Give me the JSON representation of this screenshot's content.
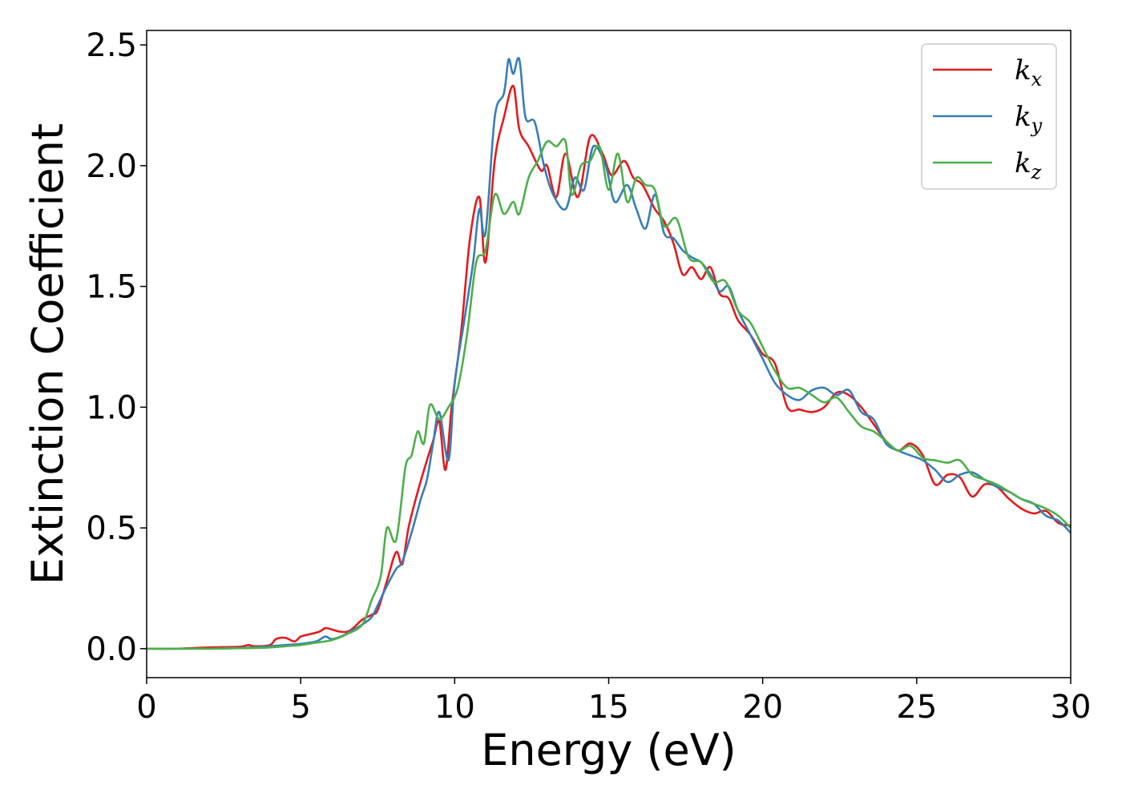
{
  "chart_data": {
    "type": "line",
    "xlabel": "Energy (eV)",
    "ylabel": "Extinction Coefficient",
    "xlim": [
      0,
      30
    ],
    "ylim": [
      -0.12,
      2.56
    ],
    "xticks": [
      "0",
      "5",
      "10",
      "15",
      "20",
      "25",
      "30"
    ],
    "yticks": [
      "0.0",
      "0.5",
      "1.0",
      "1.5",
      "2.0",
      "2.5"
    ],
    "grid": false,
    "legend_position": "top-right",
    "series": [
      {
        "name": "k_x",
        "label_main": "k",
        "label_sub": "x",
        "color": "#e41a1c",
        "x": [
          0,
          1,
          2,
          3,
          3.3,
          3.5,
          4,
          4.2,
          4.5,
          4.8,
          5,
          5.3,
          5.6,
          5.8,
          6,
          6.3,
          6.6,
          7,
          7.3,
          7.5,
          7.8,
          8.1,
          8.3,
          8.5,
          8.8,
          9.1,
          9.3,
          9.5,
          9.7,
          9.9,
          10.2,
          10.5,
          10.8,
          11,
          11.3,
          11.6,
          11.9,
          12.1,
          12.4,
          12.8,
          13,
          13.3,
          13.6,
          14,
          14.4,
          14.8,
          15.1,
          15.5,
          15.8,
          16.1,
          16.5,
          16.8,
          17.1,
          17.4,
          17.7,
          18,
          18.3,
          18.6,
          18.9,
          19.2,
          19.6,
          20,
          20.4,
          20.8,
          21.2,
          21.6,
          22,
          22.4,
          22.8,
          23.2,
          23.6,
          24,
          24.4,
          24.8,
          25.2,
          25.6,
          26,
          26.4,
          26.8,
          27.2,
          27.6,
          28,
          28.4,
          28.8,
          29.2,
          29.6,
          30
        ],
        "y": [
          0,
          0,
          0.005,
          0.008,
          0.015,
          0.01,
          0.015,
          0.04,
          0.045,
          0.03,
          0.05,
          0.06,
          0.07,
          0.085,
          0.08,
          0.07,
          0.075,
          0.12,
          0.14,
          0.16,
          0.28,
          0.4,
          0.35,
          0.5,
          0.65,
          0.78,
          0.86,
          0.94,
          0.74,
          1.0,
          1.3,
          1.7,
          1.87,
          1.6,
          2.02,
          2.2,
          2.33,
          2.15,
          2.08,
          1.98,
          2.0,
          1.87,
          2.05,
          1.87,
          2.12,
          2.05,
          1.96,
          2.02,
          1.95,
          1.92,
          1.82,
          1.77,
          1.68,
          1.55,
          1.58,
          1.53,
          1.58,
          1.47,
          1.45,
          1.36,
          1.3,
          1.22,
          1.18,
          1.0,
          0.99,
          0.98,
          1.0,
          1.06,
          1.05,
          1.0,
          0.93,
          0.86,
          0.82,
          0.85,
          0.8,
          0.68,
          0.72,
          0.71,
          0.63,
          0.68,
          0.67,
          0.62,
          0.58,
          0.56,
          0.57,
          0.52,
          0.51
        ]
      },
      {
        "name": "k_y",
        "label_main": "k",
        "label_sub": "y",
        "color": "#377eb8",
        "x": [
          0,
          1,
          2,
          3,
          3.5,
          4,
          4.5,
          5,
          5.5,
          5.8,
          6,
          6.3,
          6.6,
          7,
          7.3,
          7.5,
          7.8,
          8.1,
          8.3,
          8.6,
          8.9,
          9.1,
          9.3,
          9.5,
          9.8,
          10,
          10.3,
          10.6,
          10.8,
          11,
          11.3,
          11.6,
          11.75,
          11.9,
          12.1,
          12.3,
          12.6,
          12.9,
          13.2,
          13.6,
          13.9,
          14.2,
          14.5,
          14.9,
          15.2,
          15.6,
          15.9,
          16.2,
          16.5,
          16.8,
          17.1,
          17.4,
          17.7,
          18,
          18.3,
          18.6,
          18.9,
          19.2,
          19.6,
          20,
          20.4,
          20.8,
          21.2,
          21.6,
          22,
          22.4,
          22.8,
          23.2,
          23.6,
          24,
          24.4,
          24.8,
          25.2,
          25.6,
          26,
          26.4,
          26.8,
          27.2,
          27.6,
          28,
          28.4,
          28.8,
          29.2,
          29.6,
          30
        ],
        "y": [
          0,
          0,
          0,
          0.003,
          0.005,
          0.01,
          0.015,
          0.02,
          0.03,
          0.05,
          0.04,
          0.05,
          0.07,
          0.1,
          0.13,
          0.18,
          0.26,
          0.33,
          0.36,
          0.48,
          0.62,
          0.7,
          0.85,
          0.98,
          0.78,
          1.1,
          1.35,
          1.6,
          1.82,
          1.72,
          2.2,
          2.3,
          2.44,
          2.38,
          2.44,
          2.2,
          2.18,
          2.0,
          1.88,
          1.82,
          1.95,
          1.9,
          2.08,
          2.0,
          1.85,
          1.92,
          1.82,
          1.74,
          1.88,
          1.72,
          1.7,
          1.65,
          1.62,
          1.6,
          1.55,
          1.48,
          1.5,
          1.4,
          1.3,
          1.2,
          1.1,
          1.05,
          1.03,
          1.07,
          1.08,
          1.05,
          1.07,
          0.98,
          0.95,
          0.85,
          0.82,
          0.8,
          0.78,
          0.74,
          0.69,
          0.72,
          0.73,
          0.7,
          0.67,
          0.65,
          0.62,
          0.6,
          0.55,
          0.53,
          0.48
        ]
      },
      {
        "name": "k_z",
        "label_main": "k",
        "label_sub": "z",
        "color": "#4daf4a",
        "x": [
          0,
          1,
          2,
          3,
          3.5,
          4,
          4.5,
          5,
          5.5,
          6,
          6.5,
          7,
          7.3,
          7.6,
          7.8,
          8.1,
          8.4,
          8.6,
          8.8,
          9,
          9.2,
          9.5,
          9.8,
          10.1,
          10.4,
          10.7,
          11,
          11.3,
          11.6,
          11.9,
          12.1,
          12.4,
          12.7,
          13,
          13.3,
          13.6,
          13.8,
          14.1,
          14.4,
          14.7,
          15,
          15.3,
          15.6,
          15.9,
          16.2,
          16.5,
          16.8,
          17.2,
          17.6,
          18,
          18.4,
          18.8,
          19.2,
          19.6,
          20,
          20.4,
          20.8,
          21.2,
          21.6,
          22,
          22.4,
          22.8,
          23.2,
          23.6,
          24,
          24.4,
          24.8,
          25.2,
          25.6,
          26,
          26.4,
          26.8,
          27.2,
          27.6,
          28,
          28.4,
          28.8,
          29.2,
          29.6,
          30
        ],
        "y": [
          0,
          0,
          0,
          0.002,
          0.003,
          0.005,
          0.01,
          0.015,
          0.025,
          0.035,
          0.06,
          0.1,
          0.2,
          0.3,
          0.5,
          0.45,
          0.75,
          0.8,
          0.9,
          0.85,
          1.01,
          0.95,
          1.0,
          1.08,
          1.3,
          1.6,
          1.65,
          1.88,
          1.8,
          1.85,
          1.8,
          1.95,
          2.02,
          2.1,
          2.08,
          2.1,
          1.88,
          2.0,
          2.02,
          2.08,
          1.9,
          2.05,
          1.85,
          1.95,
          1.92,
          1.9,
          1.75,
          1.78,
          1.62,
          1.6,
          1.52,
          1.52,
          1.4,
          1.35,
          1.25,
          1.15,
          1.08,
          1.08,
          1.05,
          1.02,
          1.04,
          0.98,
          0.92,
          0.9,
          0.86,
          0.82,
          0.84,
          0.79,
          0.78,
          0.77,
          0.78,
          0.72,
          0.7,
          0.68,
          0.65,
          0.62,
          0.6,
          0.58,
          0.55,
          0.5
        ]
      }
    ]
  }
}
